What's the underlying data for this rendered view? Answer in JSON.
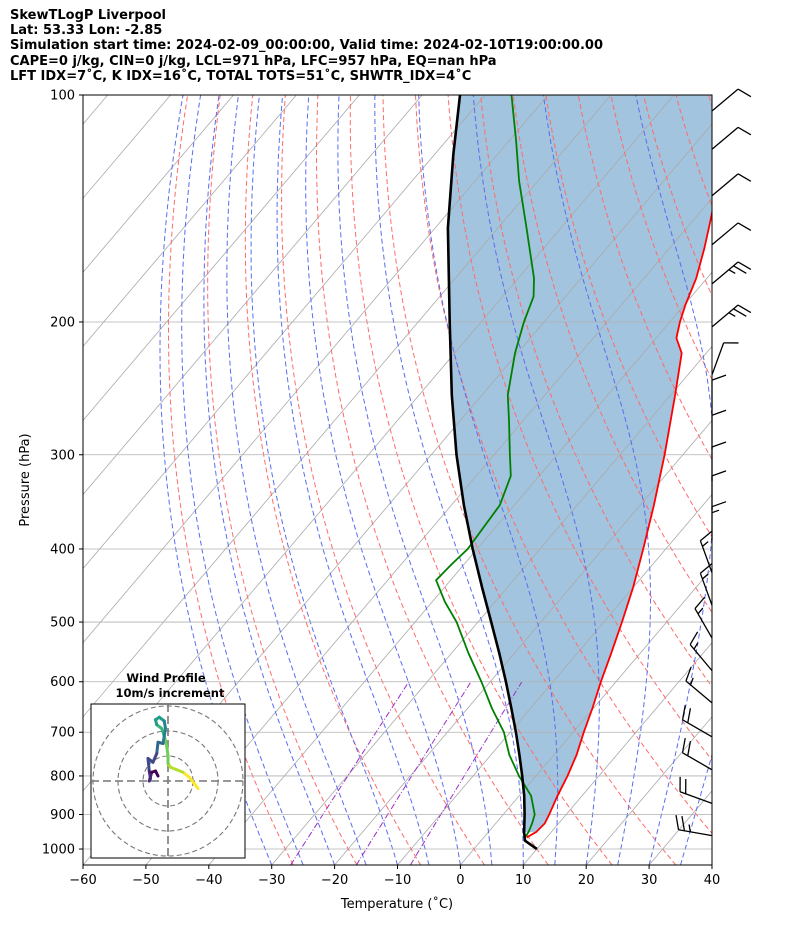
{
  "header": {
    "title": "SkewTLogP Liverpool",
    "location": "Lat: 53.33   Lon: -2.85",
    "times": "Simulation start time: 2024-02-09_00:00:00, Valid time: 2024-02-10T19:00:00.00",
    "params": "CAPE=0 j/kg, CIN=0 j/kg, LCL=971 hPa, LFC=957 hPa, EQ=nan hPa",
    "indices": "LFT IDX=7˚C, K IDX=16˚C, TOTAL TOTS=51˚C, SHWTR_IDX=4˚C"
  },
  "chart_data": [
    {
      "type": "line",
      "subtype": "skewt-logp",
      "xlabel": "Temperature (˚C)",
      "ylabel": "Pressure (hPa)",
      "xlim": [
        -60,
        40
      ],
      "ylim": [
        1050,
        100
      ],
      "yscale": "log",
      "x_ticks": [
        "−60",
        "−50",
        "−40",
        "−30",
        "−20",
        "−10",
        "0",
        "10",
        "20",
        "30",
        "40"
      ],
      "y_ticks": [
        "100",
        "200",
        "300",
        "400",
        "500",
        "600",
        "700",
        "800",
        "900",
        "1000"
      ],
      "grid": true,
      "colors": {
        "temperature": "#ff0000",
        "dewpoint": "#008000",
        "parcel": "#000000",
        "cape_fill": "#a2c4de",
        "dry_adiabats": "#ff6b6b",
        "moist_adiabats": "#5a6cf0",
        "isotherms": "#aaaaaa",
        "mixing_ratio": "#9b30c8",
        "wind_barbs": "#000000"
      },
      "series": [
        {
          "key": "temperature",
          "values": [
            {
              "p": 965,
              "t": 6.8
            },
            {
              "p": 950,
              "t": 7.6
            },
            {
              "p": 925,
              "t": 7.8
            },
            {
              "p": 900,
              "t": 7.3
            },
            {
              "p": 850,
              "t": 6.1
            },
            {
              "p": 800,
              "t": 5.0
            },
            {
              "p": 750,
              "t": 3.6
            },
            {
              "p": 700,
              "t": 1.7
            },
            {
              "p": 650,
              "t": -0.2
            },
            {
              "p": 600,
              "t": -2.4
            },
            {
              "p": 550,
              "t": -4.6
            },
            {
              "p": 500,
              "t": -7.1
            },
            {
              "p": 450,
              "t": -10.0
            },
            {
              "p": 400,
              "t": -13.6
            },
            {
              "p": 350,
              "t": -17.8
            },
            {
              "p": 300,
              "t": -22.9
            },
            {
              "p": 270,
              "t": -26.6
            },
            {
              "p": 250,
              "t": -29.3
            },
            {
              "p": 230,
              "t": -32.3
            },
            {
              "p": 220,
              "t": -33.9
            },
            {
              "p": 210,
              "t": -36.8
            },
            {
              "p": 200,
              "t": -38.4
            },
            {
              "p": 190,
              "t": -39.8
            },
            {
              "p": 175,
              "t": -41.7
            },
            {
              "p": 160,
              "t": -44.4
            },
            {
              "p": 150,
              "t": -46.5
            },
            {
              "p": 140,
              "t": -48.8
            },
            {
              "p": 130,
              "t": -51.6
            },
            {
              "p": 120,
              "t": -54.3
            },
            {
              "p": 110,
              "t": -57.6
            },
            {
              "p": 100,
              "t": -61.0
            }
          ]
        },
        {
          "key": "dewpoint",
          "values": [
            {
              "p": 965,
              "t": 6.5
            },
            {
              "p": 950,
              "t": 6.4
            },
            {
              "p": 925,
              "t": 5.8
            },
            {
              "p": 900,
              "t": 5.0
            },
            {
              "p": 850,
              "t": 1.9
            },
            {
              "p": 800,
              "t": -2.7
            },
            {
              "p": 750,
              "t": -7.1
            },
            {
              "p": 700,
              "t": -11.0
            },
            {
              "p": 650,
              "t": -16.2
            },
            {
              "p": 600,
              "t": -21.4
            },
            {
              "p": 550,
              "t": -27.3
            },
            {
              "p": 500,
              "t": -33.4
            },
            {
              "p": 470,
              "t": -38.0
            },
            {
              "p": 440,
              "t": -42.3
            },
            {
              "p": 420,
              "t": -42.0
            },
            {
              "p": 400,
              "t": -41.5
            },
            {
              "p": 350,
              "t": -42.3
            },
            {
              "p": 320,
              "t": -44.5
            },
            {
              "p": 300,
              "t": -47.5
            },
            {
              "p": 270,
              "t": -52.3
            },
            {
              "p": 250,
              "t": -55.9
            },
            {
              "p": 220,
              "t": -60.4
            },
            {
              "p": 200,
              "t": -63.2
            },
            {
              "p": 185,
              "t": -65.1
            },
            {
              "p": 175,
              "t": -67.5
            },
            {
              "p": 150,
              "t": -75.5
            },
            {
              "p": 130,
              "t": -83.0
            },
            {
              "p": 115,
              "t": -88.9
            },
            {
              "p": 100,
              "t": -95.8
            }
          ]
        },
        {
          "key": "parcel",
          "values": [
            {
              "p": 1000,
              "t": 10.0
            },
            {
              "p": 975,
              "t": 7.0
            },
            {
              "p": 950,
              "t": 5.7
            },
            {
              "p": 900,
              "t": 3.4
            },
            {
              "p": 850,
              "t": 0.8
            },
            {
              "p": 800,
              "t": -2.2
            },
            {
              "p": 750,
              "t": -5.5
            },
            {
              "p": 700,
              "t": -9.1
            },
            {
              "p": 650,
              "t": -13.1
            },
            {
              "p": 600,
              "t": -17.5
            },
            {
              "p": 550,
              "t": -22.4
            },
            {
              "p": 500,
              "t": -27.9
            },
            {
              "p": 450,
              "t": -34.0
            },
            {
              "p": 400,
              "t": -40.7
            },
            {
              "p": 350,
              "t": -48.0
            },
            {
              "p": 300,
              "t": -56.0
            },
            {
              "p": 250,
              "t": -64.8
            },
            {
              "p": 200,
              "t": -75.0
            },
            {
              "p": 150,
              "t": -88.0
            },
            {
              "p": 120,
              "t": -97.0
            },
            {
              "p": 100,
              "t": -104.0
            }
          ]
        }
      ],
      "wind_barbs": [
        {
          "p": 105,
          "spd": 10,
          "dir": 50
        },
        {
          "p": 118,
          "spd": 10,
          "dir": 50
        },
        {
          "p": 136,
          "spd": 10,
          "dir": 50
        },
        {
          "p": 158,
          "spd": 10,
          "dir": 50
        },
        {
          "p": 178,
          "spd": 25,
          "dir": 50
        },
        {
          "p": 203,
          "spd": 25,
          "dir": 50
        },
        {
          "p": 235,
          "spd": 10,
          "dir": 20
        },
        {
          "p": 265,
          "spd": 10,
          "dir": 0
        },
        {
          "p": 295,
          "spd": 10,
          "dir": 0
        },
        {
          "p": 325,
          "spd": 10,
          "dir": 0
        },
        {
          "p": 355,
          "spd": 10,
          "dir": 0
        },
        {
          "p": 390,
          "spd": 15,
          "dir": 0
        },
        {
          "p": 430,
          "spd": 15,
          "dir": 340
        },
        {
          "p": 475,
          "spd": 15,
          "dir": 340
        },
        {
          "p": 525,
          "spd": 15,
          "dir": 330
        },
        {
          "p": 580,
          "spd": 15,
          "dir": 320
        },
        {
          "p": 640,
          "spd": 15,
          "dir": 310
        },
        {
          "p": 710,
          "spd": 20,
          "dir": 300
        },
        {
          "p": 785,
          "spd": 20,
          "dir": 300
        },
        {
          "p": 870,
          "spd": 20,
          "dir": 290
        },
        {
          "p": 960,
          "spd": 25,
          "dir": 280
        }
      ]
    },
    {
      "type": "line",
      "subtype": "hodograph",
      "title": "Wind Profile",
      "subtitle": "10m/s increment",
      "colormap": "viridis",
      "rings_ms": [
        10,
        20,
        30
      ],
      "series": [
        {
          "key": "hodograph",
          "values": [
            {
              "u": 12.0,
              "v": -3.0
            },
            {
              "u": 10.5,
              "v": -1.0
            },
            {
              "u": 8.5,
              "v": 1.5
            },
            {
              "u": 6.0,
              "v": 3.5
            },
            {
              "u": 3.5,
              "v": 4.5
            },
            {
              "u": 1.0,
              "v": 5.5
            },
            {
              "u": 0.0,
              "v": 7.0
            },
            {
              "u": 0.0,
              "v": 10.0
            },
            {
              "u": -0.5,
              "v": 14.0
            },
            {
              "u": -1.5,
              "v": 18.0
            },
            {
              "u": -2.5,
              "v": 21.0
            },
            {
              "u": -4.5,
              "v": 22.5
            },
            {
              "u": -5.0,
              "v": 24.5
            },
            {
              "u": -3.5,
              "v": 25.5
            },
            {
              "u": -1.5,
              "v": 24.0
            },
            {
              "u": -1.0,
              "v": 21.0
            },
            {
              "u": -1.5,
              "v": 18.0
            },
            {
              "u": -2.0,
              "v": 15.0
            },
            {
              "u": -4.0,
              "v": 15.5
            },
            {
              "u": -4.5,
              "v": 11.0
            },
            {
              "u": -6.0,
              "v": 7.5
            },
            {
              "u": -8.0,
              "v": 9.0
            },
            {
              "u": -7.5,
              "v": 4.0
            },
            {
              "u": -7.0,
              "v": 1.0
            },
            {
              "u": -7.5,
              "v": 0.0
            },
            {
              "u": -6.5,
              "v": 3.5
            },
            {
              "u": -5.0,
              "v": 4.0
            },
            {
              "u": -4.0,
              "v": 2.0
            }
          ]
        }
      ]
    }
  ]
}
